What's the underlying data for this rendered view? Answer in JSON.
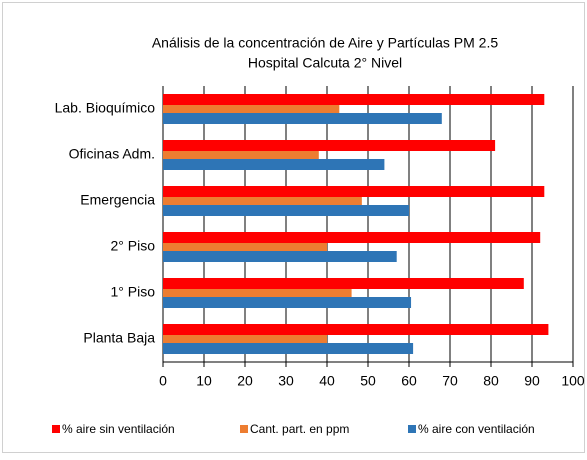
{
  "chart_data": {
    "type": "hbar",
    "title": "Análisis de la concentración de Aire y Partículas PM 2.5",
    "subtitle": "Hospital Calcuta 2° Nivel",
    "categories": [
      "Lab. Bioquímico",
      "Oficinas Adm.",
      "Emergencia",
      "2° Piso",
      "1° Piso",
      "Planta Baja"
    ],
    "series": [
      {
        "name": "% aire sin ventilación",
        "color": "#ff0000",
        "values": [
          93,
          81,
          93,
          92,
          88,
          94
        ]
      },
      {
        "name": "Cant. part. en ppm",
        "color": "#ed7d31",
        "values": [
          43,
          38,
          48.5,
          40,
          46,
          40
        ]
      },
      {
        "name": "% aire con ventilación",
        "color": "#2e75b6",
        "values": [
          68,
          54,
          60,
          57,
          60.5,
          61
        ]
      }
    ],
    "xlim": [
      0,
      100
    ],
    "xticks": [
      0,
      10,
      20,
      30,
      40,
      50,
      60,
      70,
      80,
      90,
      100
    ],
    "grid": true
  }
}
